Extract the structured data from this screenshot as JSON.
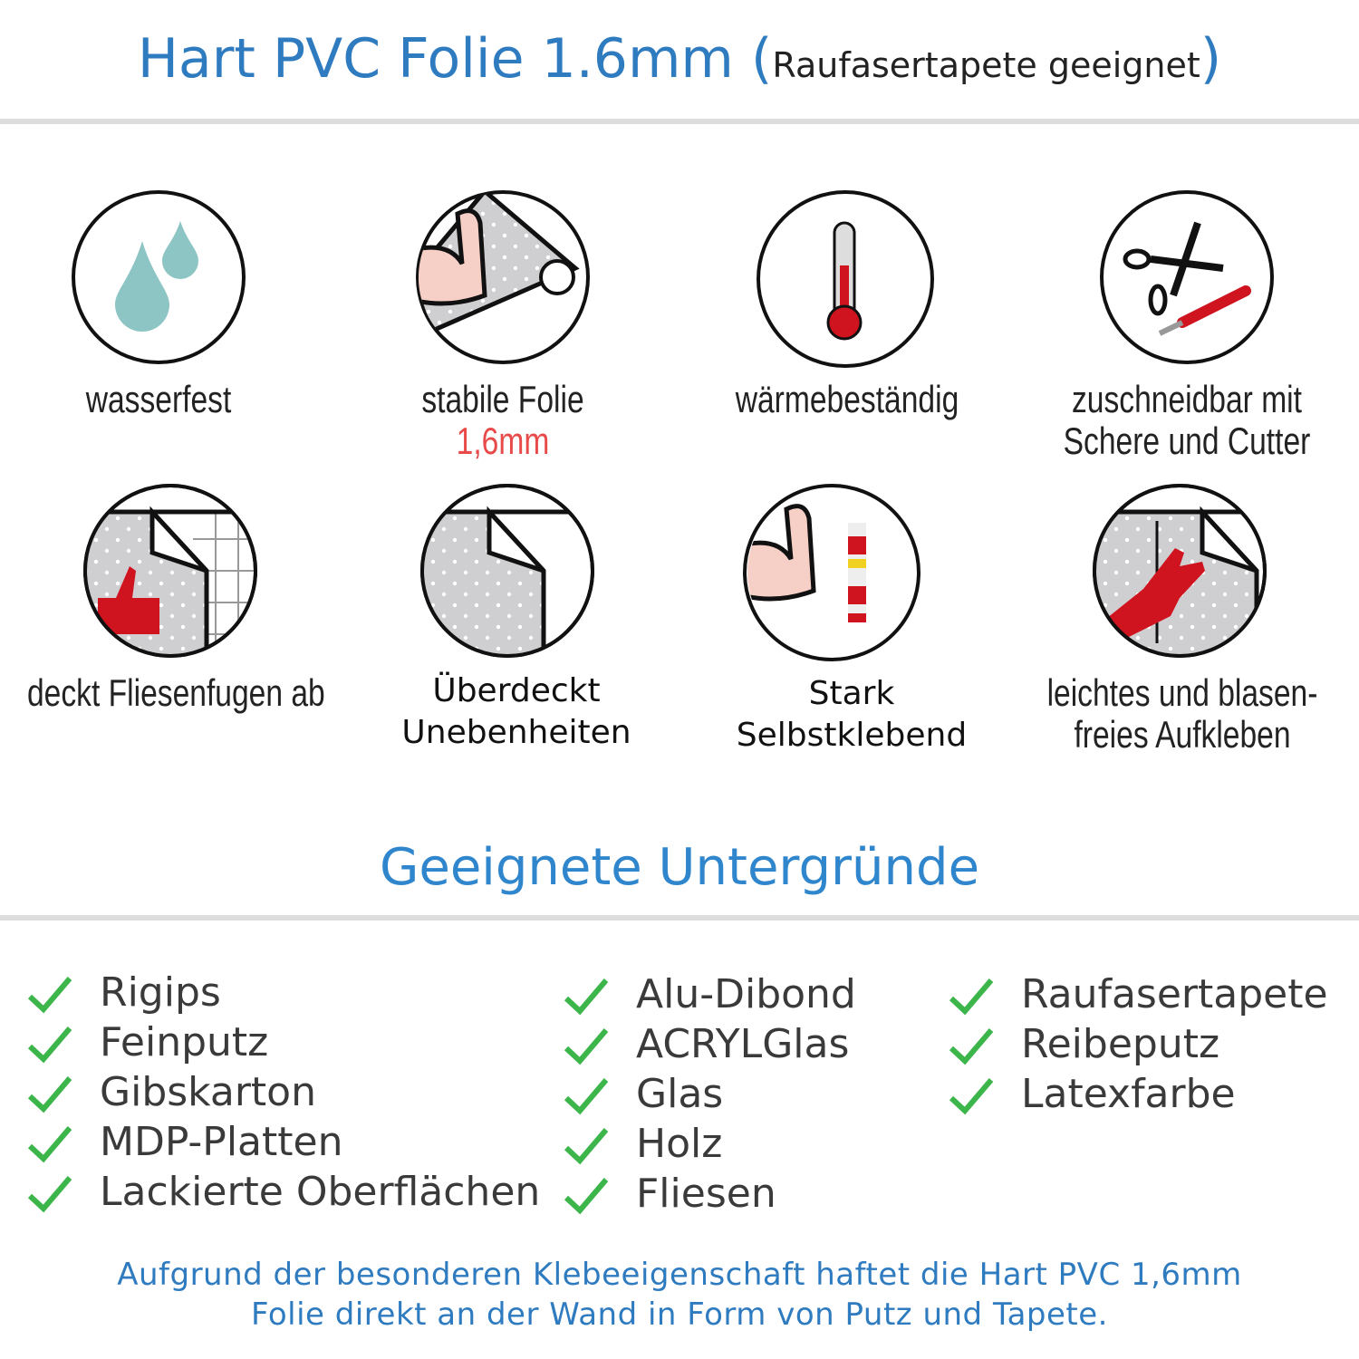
{
  "header": {
    "title": "Hart PVC Folie 1.6mm",
    "paren_open": "(",
    "subtitle": "Raufasertapete geeignet",
    "paren_close": ")"
  },
  "features": [
    {
      "icon": "water-drops-icon",
      "label": "wasserfest"
    },
    {
      "icon": "strong-arm-foil-roll-icon",
      "label": "stabile Folie",
      "sublabel": "1,6mm"
    },
    {
      "icon": "thermometer-icon",
      "label": "wärmebeständig"
    },
    {
      "icon": "scissors-cutter-icon",
      "label": "zuschneidbar mit",
      "label2": "Schere und Cutter"
    },
    {
      "icon": "thumbs-up-tiles-icon",
      "label": "deckt Fliesenfugen ab"
    },
    {
      "icon": "foil-peel-icon",
      "label": "Überdeckt",
      "label2": "Unebenheiten"
    },
    {
      "icon": "strong-arm-glue-icon",
      "label": "Stark",
      "label2": "Selbstklebend"
    },
    {
      "icon": "hand-smoothing-icon",
      "label": "leichtes und blasen-",
      "label2": "freies Aufkleben"
    }
  ],
  "surfaces": {
    "title": "Geeignete Untergründe",
    "columns": [
      [
        "Rigips",
        "Feinputz",
        "Gibskarton",
        "MDP-Platten",
        "Lackierte Oberflächen"
      ],
      [
        "Alu-Dibond",
        "ACRYLGlas",
        "Glas",
        "Holz",
        "Fliesen"
      ],
      [
        "Raufasertapete",
        "Reibeputz",
        "Latexfarbe"
      ]
    ]
  },
  "footer": {
    "line1": "Aufgrund der besonderen Klebeeigenschaft haftet die Hart PVC 1,6mm",
    "line2": "Folie direkt an der Wand in Form von Putz und Tapete."
  },
  "colors": {
    "title": "#2f7bc0",
    "check": "#3cb54a",
    "red": "#d0141f",
    "drop": "#8cc5c4",
    "highlight": "#e84a4a"
  }
}
